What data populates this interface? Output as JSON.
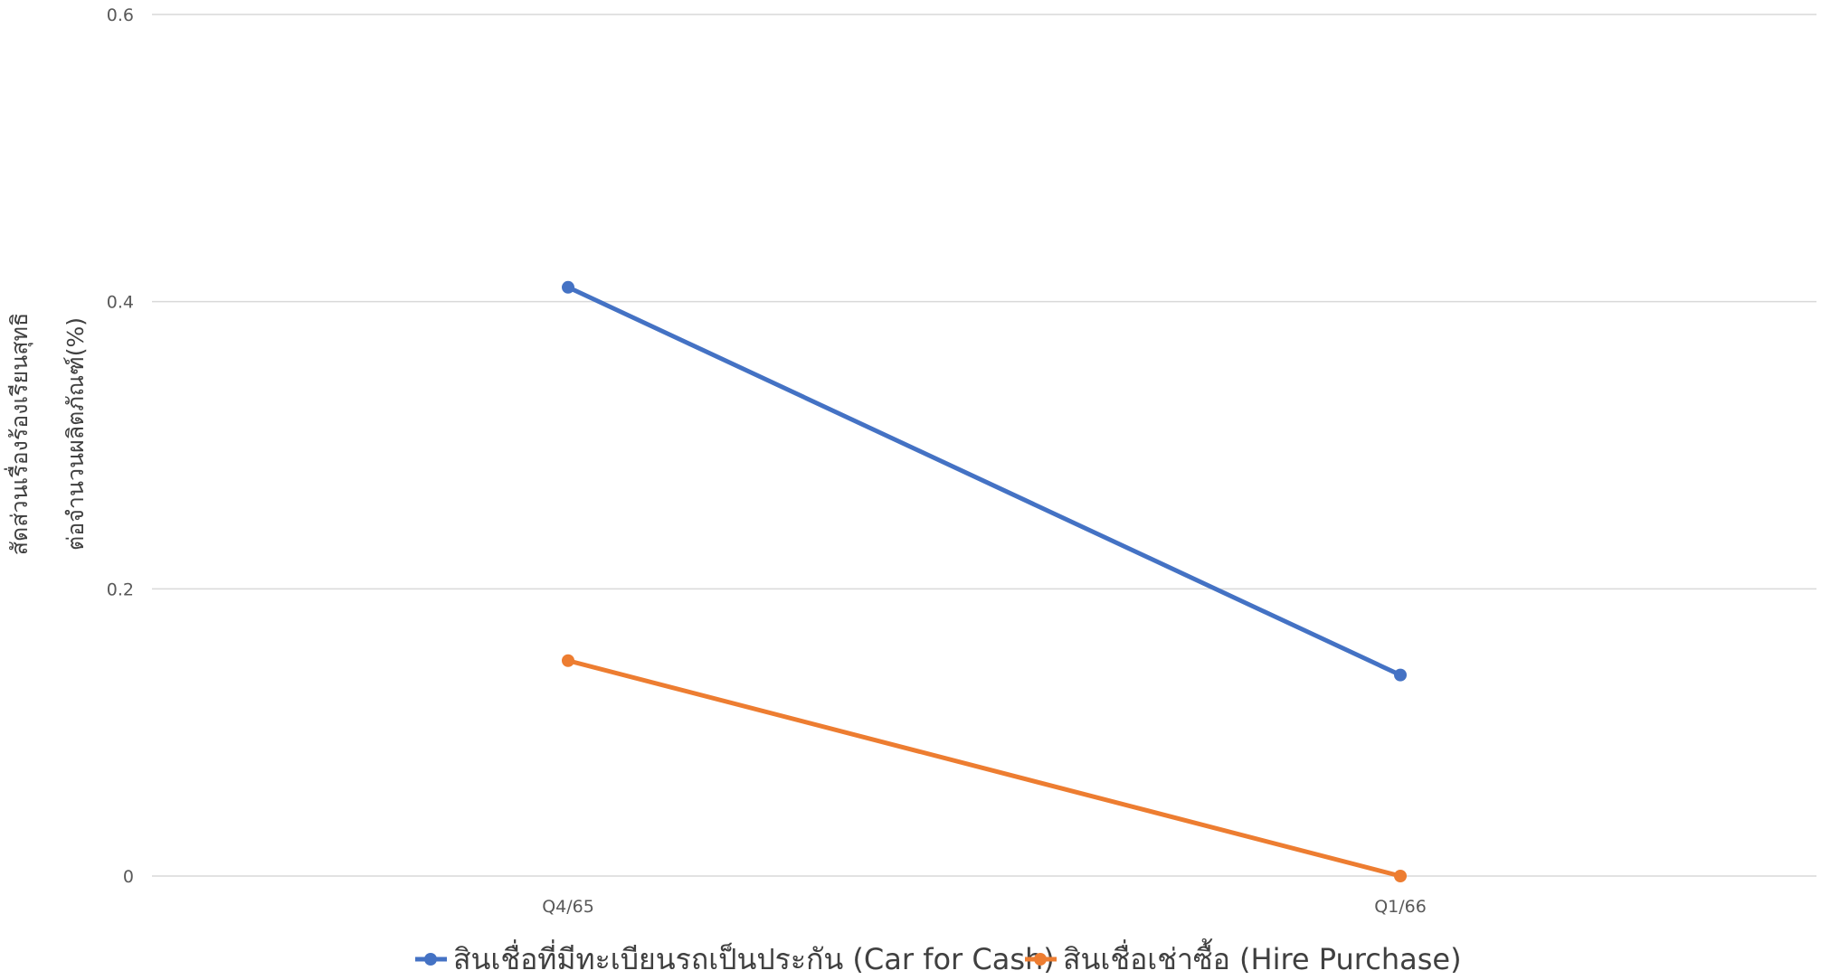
{
  "chart_data": {
    "type": "line",
    "categories": [
      "Q4/65",
      "Q1/66"
    ],
    "series": [
      {
        "name": "สินเชื่อที่มีทะเบียนรถเป็นประกัน (Car for Cash)",
        "values": [
          0.41,
          0.14
        ],
        "color": "#4472C4"
      },
      {
        "name": "สินเชื่อเช่าซื้อ (Hire Purchase)",
        "values": [
          0.15,
          0.0
        ],
        "color": "#ED7D31"
      }
    ],
    "y_ticks": [
      "0",
      "0.2",
      "0.4",
      "0.6"
    ],
    "ylim": [
      0,
      0.6
    ],
    "ylabel_lines": [
      "สัดส่วนเรื่องร้องเรียนสุทธิ",
      "ต่อจำนวนผลิตภัณฑ์(%)"
    ],
    "xlabel": "",
    "grid": "horizontal",
    "legend_position": "bottom"
  }
}
